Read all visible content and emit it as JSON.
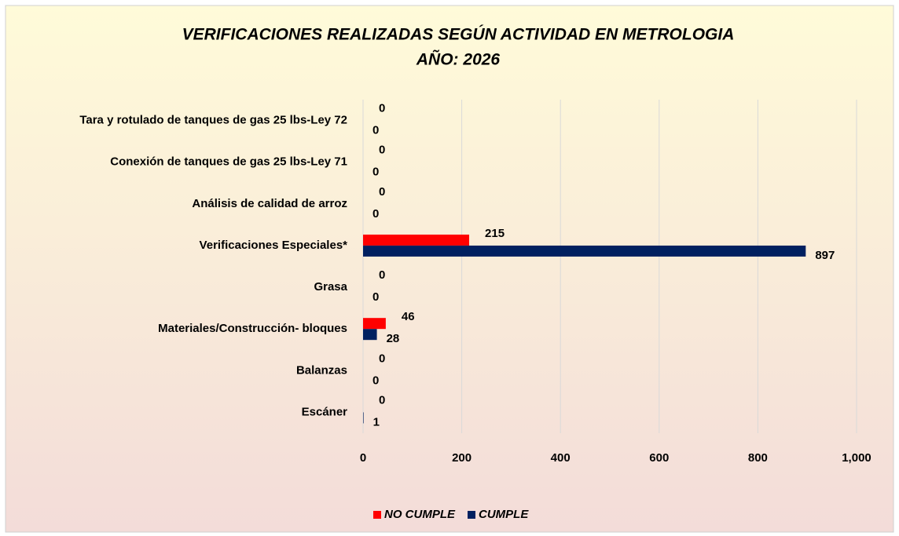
{
  "chart_data": {
    "type": "bar",
    "orientation": "horizontal",
    "title": "VERIFICACIONES REALIZADAS SEGÚN ACTIVIDAD EN METROLOGIA",
    "subtitle": "AÑO: 2026",
    "categories": [
      "Tara y rotulado de tanques de gas 25 lbs-Ley 72",
      "Conexión de tanques de gas 25 lbs-Ley 71",
      "Análisis de calidad de arroz",
      "Verificaciones Especiales*",
      "Grasa",
      "Materiales/Construcción- bloques",
      "Balanzas",
      "Escáner"
    ],
    "series": [
      {
        "name": "NO CUMPLE",
        "color": "#ff0000",
        "values": [
          0,
          0,
          0,
          215,
          0,
          46,
          0,
          0
        ]
      },
      {
        "name": "CUMPLE",
        "color": "#002060",
        "values": [
          0,
          0,
          0,
          897,
          0,
          28,
          0,
          1
        ]
      }
    ],
    "xlim": [
      0,
      1000
    ],
    "xticks": [
      0,
      200,
      400,
      600,
      800,
      {
        "value": 1000,
        "label": "1,000"
      }
    ],
    "grid": true,
    "legend": "bottom"
  }
}
